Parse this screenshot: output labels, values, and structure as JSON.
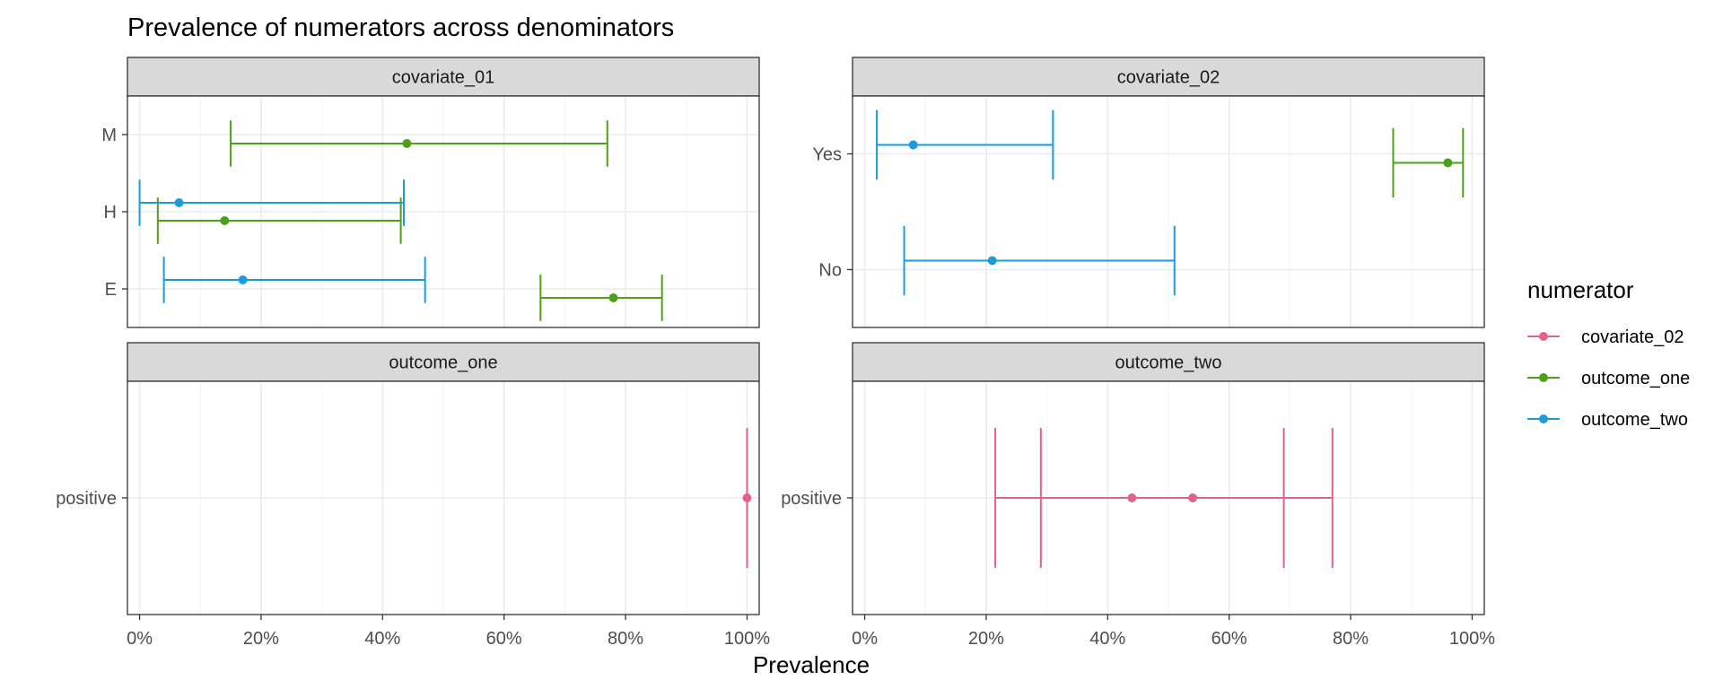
{
  "chart_data": {
    "type": "errorbar-forest",
    "title": "Prevalence of numerators across denominators",
    "xlabel": "Prevalence",
    "ylabel": "",
    "xlim": [
      -0.02,
      1.02
    ],
    "x_ticks": [
      0,
      0.2,
      0.4,
      0.6,
      0.8,
      1.0
    ],
    "x_tick_labels": [
      "0%",
      "20%",
      "40%",
      "60%",
      "80%",
      "100%"
    ],
    "grid": true,
    "legend": {
      "title": "numerator",
      "position": "right",
      "items": [
        {
          "name": "covariate_02",
          "color": "#e0628f"
        },
        {
          "name": "outcome_one",
          "color": "#4ea01a"
        },
        {
          "name": "outcome_two",
          "color": "#1a9bdb"
        }
      ]
    },
    "panels": [
      {
        "title": "covariate_01",
        "categories": [
          "E",
          "H",
          "M"
        ],
        "series": [
          {
            "name": "outcome_one",
            "points": [
              {
                "category": "M",
                "estimate": 0.44,
                "lower": 0.15,
                "upper": 0.77
              },
              {
                "category": "H",
                "estimate": 0.14,
                "lower": 0.03,
                "upper": 0.43
              },
              {
                "category": "E",
                "estimate": 0.78,
                "lower": 0.66,
                "upper": 0.86
              }
            ]
          },
          {
            "name": "outcome_two",
            "points": [
              {
                "category": "H",
                "estimate": 0.065,
                "lower": 0.0,
                "upper": 0.435
              },
              {
                "category": "E",
                "estimate": 0.17,
                "lower": 0.04,
                "upper": 0.47
              }
            ]
          }
        ]
      },
      {
        "title": "covariate_02",
        "categories": [
          "No",
          "Yes"
        ],
        "series": [
          {
            "name": "outcome_two",
            "points": [
              {
                "category": "Yes",
                "estimate": 0.08,
                "lower": 0.02,
                "upper": 0.31
              },
              {
                "category": "No",
                "estimate": 0.21,
                "lower": 0.065,
                "upper": 0.51
              }
            ]
          },
          {
            "name": "outcome_one",
            "points": [
              {
                "category": "Yes",
                "estimate": 0.96,
                "lower": 0.87,
                "upper": 0.985
              }
            ]
          }
        ]
      },
      {
        "title": "outcome_one",
        "categories": [
          "positive"
        ],
        "series": [
          {
            "name": "covariate_02",
            "points": [
              {
                "category": "positive",
                "estimate": 1.0,
                "lower": 1.0,
                "upper": 1.0
              }
            ]
          }
        ]
      },
      {
        "title": "outcome_two",
        "categories": [
          "positive"
        ],
        "series": [
          {
            "name": "covariate_02",
            "points": [
              {
                "category": "positive",
                "estimate": 0.44,
                "lower": 0.215,
                "upper": 0.69
              },
              {
                "category": "positive",
                "estimate": 0.54,
                "lower": 0.29,
                "upper": 0.77
              }
            ]
          }
        ]
      }
    ]
  }
}
